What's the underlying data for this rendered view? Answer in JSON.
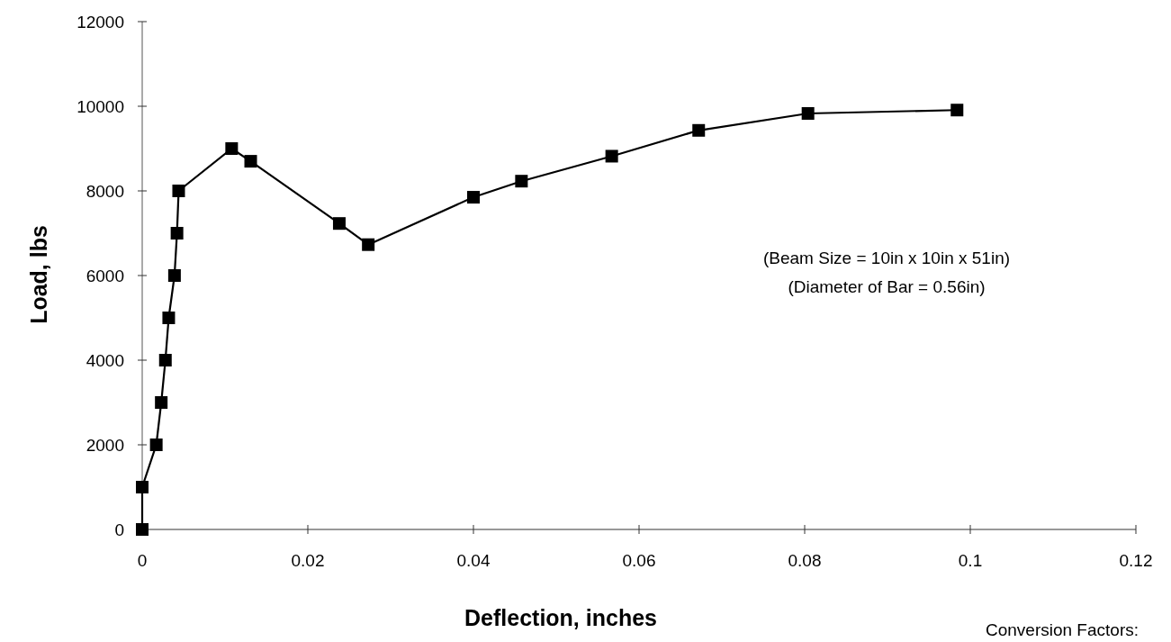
{
  "chart_data": {
    "type": "line",
    "xlabel": "Deflection, inches",
    "ylabel": "Load, lbs",
    "x": [
      0,
      0,
      0.0017,
      0.0023,
      0.0028,
      0.0032,
      0.0039,
      0.0042,
      0.0044,
      0.0108,
      0.0131,
      0.0238,
      0.0273,
      0.04,
      0.0458,
      0.0567,
      0.0672,
      0.0804,
      0.0984
    ],
    "series": [
      {
        "color": "#000000",
        "values": [
          0,
          1000,
          2000,
          3000,
          4000,
          5000,
          6000,
          7000,
          8000,
          9000,
          8700,
          7230,
          6730,
          7850,
          8230,
          8820,
          9430,
          9830,
          9910
        ]
      }
    ],
    "xlim": [
      0,
      0.12
    ],
    "xticks": [
      0,
      0.02,
      0.04,
      0.06,
      0.08,
      0.1,
      0.12
    ],
    "ylim": [
      0,
      12000
    ],
    "yticks": [
      0,
      2000,
      4000,
      6000,
      8000,
      10000,
      12000
    ],
    "marker": "square",
    "line_style": "solid",
    "grid": false,
    "annotations": [
      "(Beam Size = 10in x 10in x 51in)",
      "(Diameter of Bar = 0.56in)",
      "Conversion Factors:"
    ]
  }
}
